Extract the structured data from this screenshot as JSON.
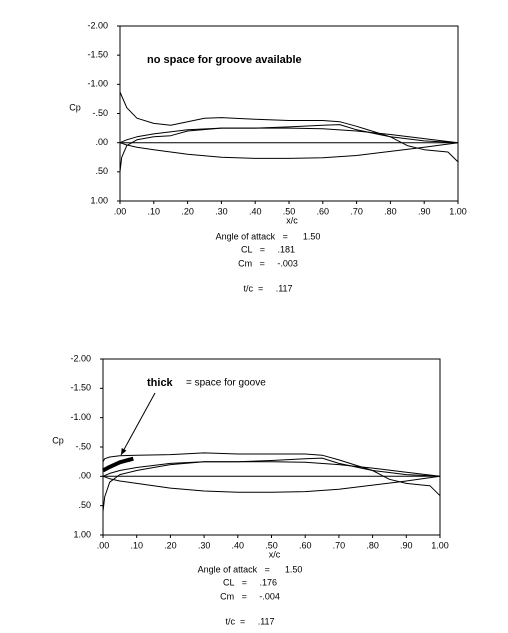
{
  "chart_data": [
    {
      "type": "line",
      "ylabel": "Cp",
      "xlabel": "x/c",
      "annotation": "no space for groove available",
      "xlim": [
        0,
        1
      ],
      "ylim": [
        -2,
        1
      ],
      "y_inverted": true,
      "xticks": [
        {
          "value": 0,
          "label": ".00"
        },
        {
          "value": 0.1,
          "label": ".10"
        },
        {
          "value": 0.2,
          "label": ".20"
        },
        {
          "value": 0.3,
          "label": ".30"
        },
        {
          "value": 0.4,
          "label": ".40"
        },
        {
          "value": 0.5,
          "label": ".50"
        },
        {
          "value": 0.6,
          "label": ".60"
        },
        {
          "value": 0.7,
          "label": ".70"
        },
        {
          "value": 0.8,
          "label": ".80"
        },
        {
          "value": 0.9,
          "label": ".90"
        },
        {
          "value": 1,
          "label": "1.00"
        }
      ],
      "yticks": [
        {
          "value": -2,
          "label": "-2.00"
        },
        {
          "value": -1.5,
          "label": "-1.50"
        },
        {
          "value": -1,
          "label": "-1.00"
        },
        {
          "value": -0.5,
          "label": "-.50"
        },
        {
          "value": 0,
          "label": ".00"
        },
        {
          "value": 0.5,
          "label": ".50"
        },
        {
          "value": 1,
          "label": "1.00"
        }
      ],
      "series": [
        {
          "color": "#000000",
          "line_width": 1,
          "x": [
            0,
            0.005,
            0.02,
            0.05,
            0.1,
            0.15,
            0.2,
            0.25,
            0.3,
            0.4,
            0.5,
            0.6,
            0.65,
            0.7,
            0.8,
            0.85,
            0.9,
            0.95,
            0.97,
            1.0
          ],
          "values": [
            -0.87,
            -0.8,
            -0.6,
            -0.42,
            -0.33,
            -0.3,
            -0.36,
            -0.42,
            -0.43,
            -0.4,
            -0.38,
            -0.38,
            -0.36,
            -0.28,
            -0.1,
            0.05,
            0.12,
            0.15,
            0.16,
            0.33
          ]
        },
        {
          "color": "#000000",
          "line_width": 1,
          "x": [
            0,
            0.005,
            0.02,
            0.05,
            0.1,
            0.15,
            0.2,
            0.3,
            0.4,
            0.5,
            0.6,
            0.65,
            0.7,
            0.8,
            0.9,
            1.0
          ],
          "values": [
            0.5,
            0.25,
            0.05,
            -0.05,
            -0.1,
            -0.12,
            -0.2,
            -0.25,
            -0.25,
            -0.27,
            -0.3,
            -0.31,
            -0.22,
            -0.1,
            -0.03,
            0
          ]
        },
        {
          "color": "#000000",
          "line_width": 1,
          "x": [
            0,
            0.02,
            0.05,
            0.1,
            0.2,
            0.3,
            0.4,
            0.5,
            0.6,
            0.7,
            0.8,
            0.9,
            1.0
          ],
          "values": [
            0,
            -0.05,
            -0.1,
            -0.15,
            -0.22,
            -0.25,
            -0.25,
            -0.25,
            -0.24,
            -0.2,
            -0.14,
            -0.07,
            0
          ]
        },
        {
          "color": "#000000",
          "line_width": 1,
          "x": [
            0,
            0.02,
            0.05,
            0.1,
            0.2,
            0.3,
            0.4,
            0.5,
            0.6,
            0.7,
            0.8,
            0.9,
            1.0
          ],
          "values": [
            0,
            0.04,
            0.08,
            0.12,
            0.2,
            0.25,
            0.27,
            0.27,
            0.26,
            0.22,
            0.15,
            0.08,
            0
          ]
        },
        {
          "color": "#000000",
          "line_width": 1,
          "x": [
            0,
            1
          ],
          "values": [
            0,
            0
          ]
        }
      ],
      "stats": [
        "Angle of attack   =      1.50",
        "CL   =     .181",
        "Cm   =     -.003",
        "t/c  =     .117"
      ]
    },
    {
      "type": "line",
      "ylabel": "Cp",
      "xlabel": "x/c",
      "annotation": "thick",
      "annotation_note": "= space for goove",
      "xlim": [
        0,
        1
      ],
      "ylim": [
        -2,
        1
      ],
      "y_inverted": true,
      "xticks": [
        {
          "value": 0,
          "label": ".00"
        },
        {
          "value": 0.1,
          "label": ".10"
        },
        {
          "value": 0.2,
          "label": ".20"
        },
        {
          "value": 0.3,
          "label": ".30"
        },
        {
          "value": 0.4,
          "label": ".40"
        },
        {
          "value": 0.5,
          "label": ".50"
        },
        {
          "value": 0.6,
          "label": ".60"
        },
        {
          "value": 0.7,
          "label": ".70"
        },
        {
          "value": 0.8,
          "label": ".80"
        },
        {
          "value": 0.9,
          "label": ".90"
        },
        {
          "value": 1,
          "label": "1.00"
        }
      ],
      "yticks": [
        {
          "value": -2,
          "label": "-2.00"
        },
        {
          "value": -1.5,
          "label": "-1.50"
        },
        {
          "value": -1,
          "label": "-1.00"
        },
        {
          "value": -0.5,
          "label": "-.50"
        },
        {
          "value": 0,
          "label": ".00"
        },
        {
          "value": 0.5,
          "label": ".50"
        },
        {
          "value": 1,
          "label": "1.00"
        }
      ],
      "series": [
        {
          "color": "#000000",
          "line_width": 1,
          "x": [
            0,
            0.005,
            0.02,
            0.05,
            0.1,
            0.2,
            0.3,
            0.4,
            0.5,
            0.6,
            0.65,
            0.7,
            0.8,
            0.85,
            0.9,
            0.95,
            0.97,
            1.0
          ],
          "values": [
            -0.25,
            -0.3,
            -0.33,
            -0.35,
            -0.36,
            -0.37,
            -0.4,
            -0.38,
            -0.38,
            -0.38,
            -0.36,
            -0.28,
            -0.1,
            0.05,
            0.12,
            0.15,
            0.16,
            0.33
          ]
        },
        {
          "color": "#000000",
          "line_width": 1,
          "x": [
            0,
            0.005,
            0.02,
            0.05,
            0.1,
            0.15,
            0.2,
            0.3,
            0.4,
            0.5,
            0.6,
            0.65,
            0.7,
            0.8,
            0.9,
            1.0
          ],
          "values": [
            0.6,
            0.35,
            0.1,
            -0.03,
            -0.1,
            -0.15,
            -0.2,
            -0.25,
            -0.25,
            -0.27,
            -0.3,
            -0.31,
            -0.22,
            -0.1,
            -0.03,
            0
          ]
        },
        {
          "color": "#000000",
          "line_width": 1,
          "x": [
            0,
            0.02,
            0.05,
            0.1,
            0.2,
            0.3,
            0.4,
            0.5,
            0.6,
            0.7,
            0.8,
            0.9,
            1.0
          ],
          "values": [
            0,
            -0.05,
            -0.1,
            -0.15,
            -0.22,
            -0.25,
            -0.25,
            -0.25,
            -0.24,
            -0.2,
            -0.14,
            -0.07,
            0
          ]
        },
        {
          "color": "#000000",
          "line_width": 1,
          "x": [
            0,
            0.02,
            0.05,
            0.1,
            0.2,
            0.3,
            0.4,
            0.5,
            0.6,
            0.7,
            0.8,
            0.9,
            1.0
          ],
          "values": [
            0,
            0.04,
            0.08,
            0.12,
            0.2,
            0.25,
            0.27,
            0.27,
            0.26,
            0.22,
            0.15,
            0.08,
            0
          ]
        },
        {
          "color": "#000000",
          "line_width": 1,
          "x": [
            0,
            1
          ],
          "values": [
            0,
            0
          ]
        },
        {
          "color": "#000000",
          "line_width": 4,
          "x": [
            0,
            0.02,
            0.05,
            0.09
          ],
          "values": [
            -0.1,
            -0.16,
            -0.24,
            -0.3
          ]
        }
      ],
      "stats": [
        "Angle of attack   =      1.50",
        "CL   =     .176",
        "Cm   =     -.004",
        "t/c  =     .117"
      ]
    }
  ]
}
